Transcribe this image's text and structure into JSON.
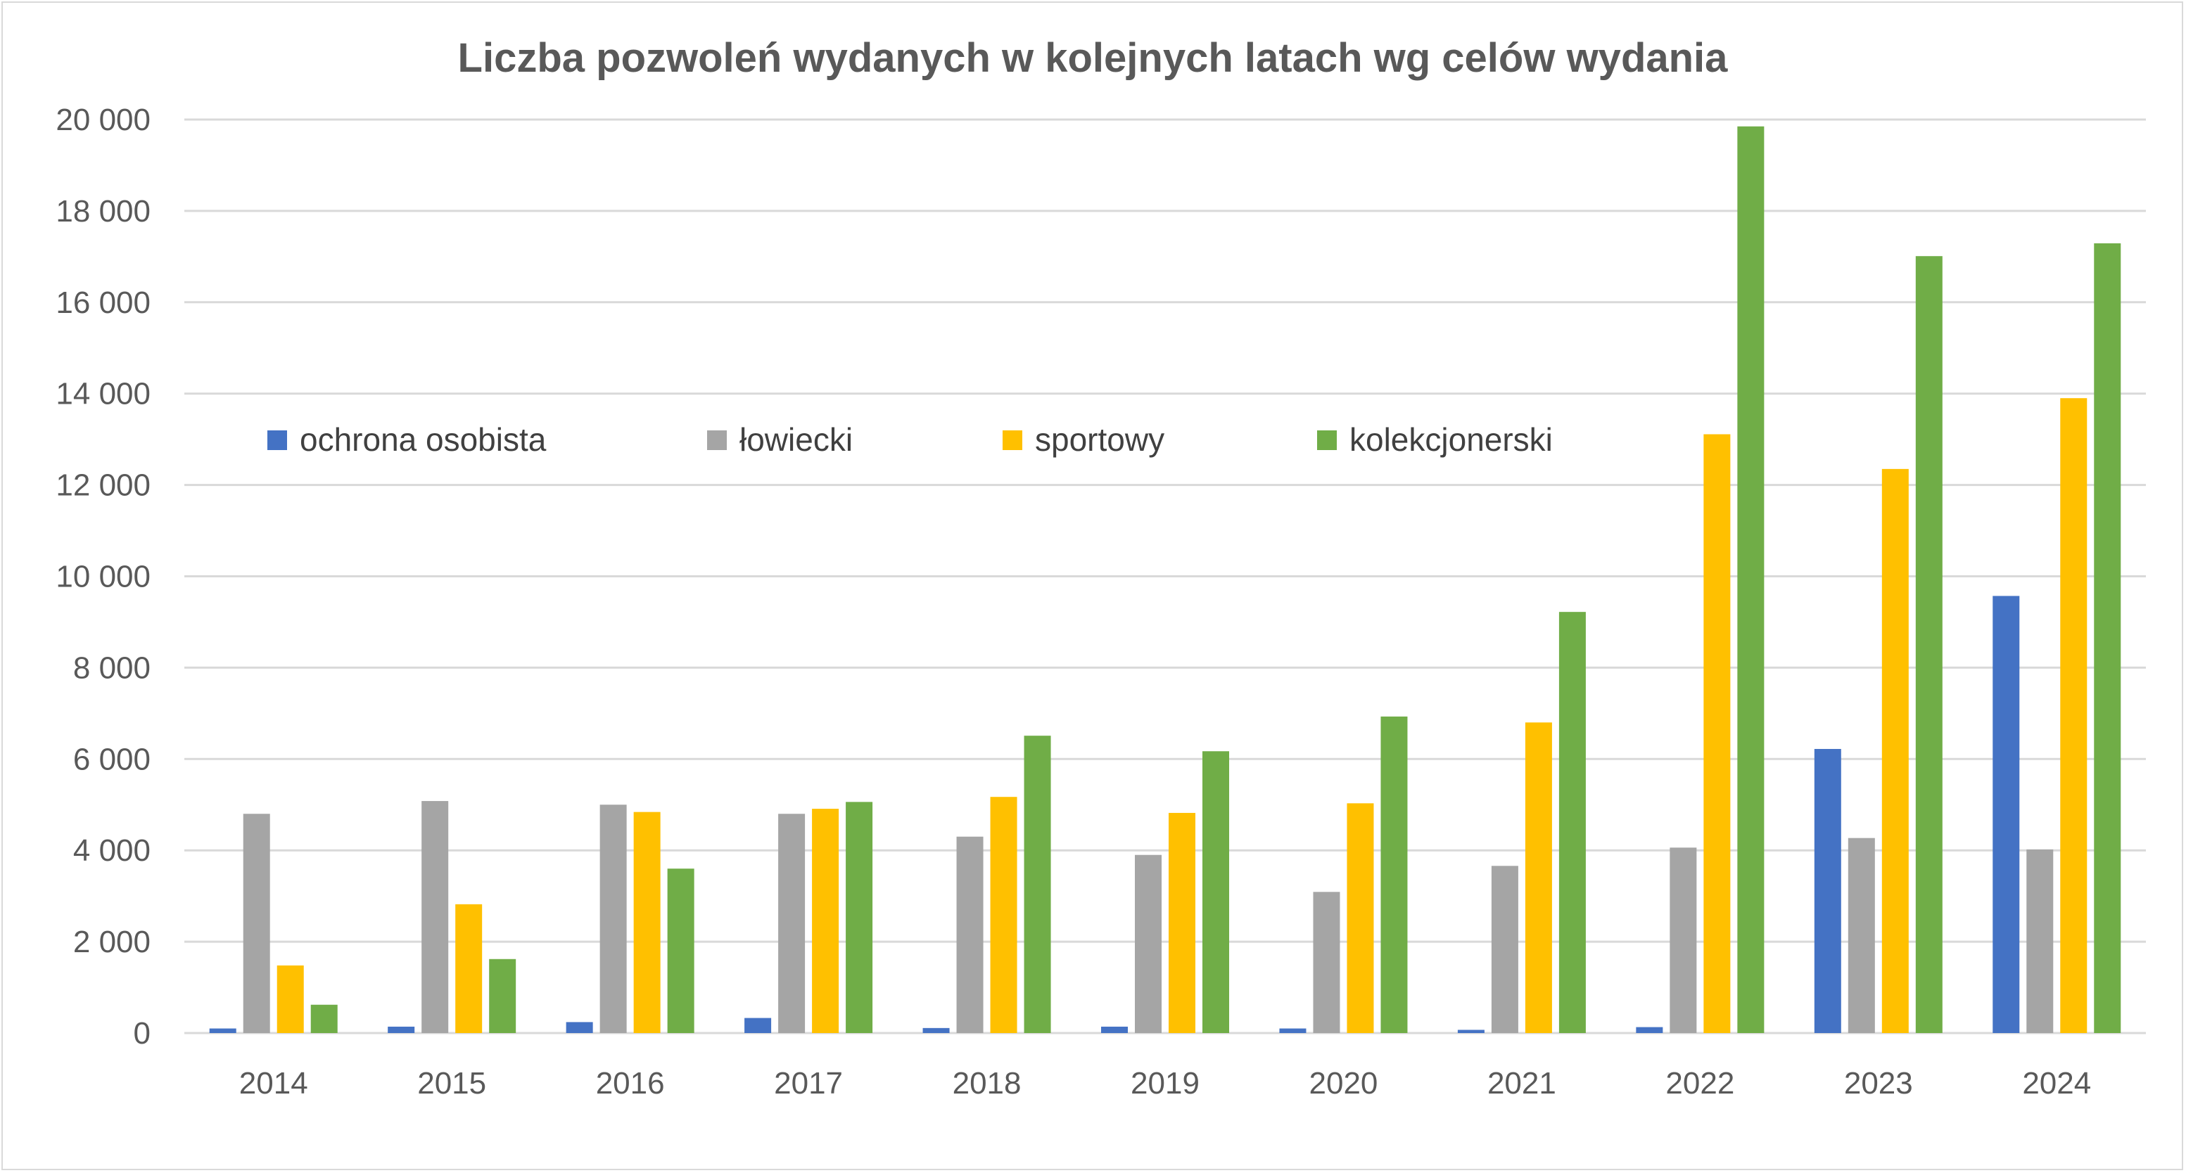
{
  "chart_data": {
    "type": "bar",
    "title": "Liczba pozwoleń wydanych w kolejnych latach wg celów wydania",
    "xlabel": "",
    "ylabel": "",
    "categories": [
      "2014",
      "2015",
      "2016",
      "2017",
      "2018",
      "2019",
      "2020",
      "2021",
      "2022",
      "2023",
      "2024"
    ],
    "ylim": [
      0,
      20000
    ],
    "yticks": [
      0,
      2000,
      4000,
      6000,
      8000,
      10000,
      12000,
      14000,
      16000,
      18000,
      20000
    ],
    "ytick_labels": [
      "0",
      "2 000",
      "4 000",
      "6 000",
      "8 000",
      "10 000",
      "12 000",
      "14 000",
      "16 000",
      "18 000",
      "20 000"
    ],
    "grid": true,
    "legend_placement": "top-left inside",
    "series": [
      {
        "name": "ochrona osobista",
        "color": "#4472c4",
        "values": [
          100,
          140,
          240,
          330,
          110,
          140,
          100,
          70,
          130,
          6220,
          9570
        ]
      },
      {
        "name": "łowiecki",
        "color": "#a5a5a5",
        "values": [
          4800,
          5080,
          5000,
          4800,
          4300,
          3900,
          3090,
          3660,
          4060,
          4270,
          4020
        ]
      },
      {
        "name": "sportowy",
        "color": "#ffc000",
        "values": [
          1480,
          2820,
          4840,
          4910,
          5170,
          4820,
          5030,
          6800,
          13110,
          12350,
          13900
        ]
      },
      {
        "name": "kolekcjonerski",
        "color": "#70ad47",
        "values": [
          620,
          1620,
          3600,
          5060,
          6510,
          6170,
          6930,
          9220,
          19850,
          17010,
          17290
        ]
      }
    ]
  }
}
